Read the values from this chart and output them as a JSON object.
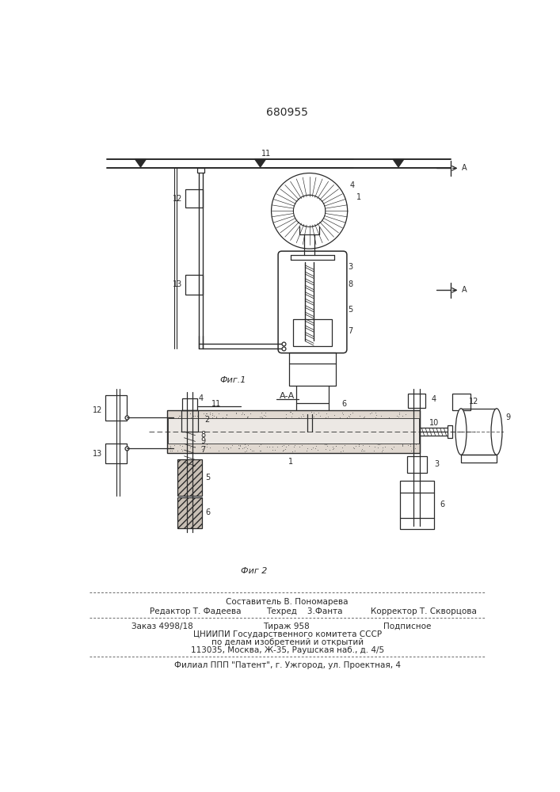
{
  "patent_number": "680955",
  "fig1_label": "Фиг.1",
  "fig2_label": "Фиг 2",
  "aa_label": "А-А",
  "background": "#ffffff",
  "line_color": "#2a2a2a",
  "footer_lines": [
    "Составитель В. Пономарева",
    "Редактор Т. Фадеева",
    "Техред    3.Фанта",
    "Корректор Т. Скворцова",
    "Заказ 4998/18",
    "Тираж 958",
    "Подписное",
    "ЦНИИПИ Государственного комитета СССР",
    "по делам изобретений и открытий",
    "113035, Москва, Ж-35, Раушская наб., д. 4/5",
    "Филиал ППП \"Патент\", г. Ужгород, ул. Проектная, 4"
  ]
}
